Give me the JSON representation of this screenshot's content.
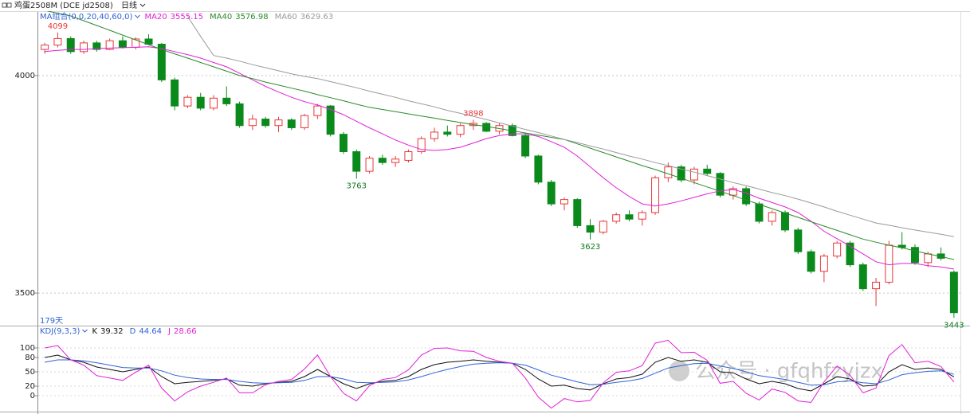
{
  "chart_data": {
    "type": "candlestick",
    "symbol": "鸡蛋2508M (DCE jd2508)",
    "period": "日线",
    "indicator": "MA组合(0,0,20,40,60,0)",
    "day_count": "179天",
    "watermark": "公众号 · gfqhfzyjzx",
    "up_color": "#e8373a",
    "down_color": "#0b8a1c",
    "ylim": [
      3427,
      4148
    ],
    "yticks": [
      3500,
      4000
    ],
    "grid": true,
    "ohlc": [
      [
        4060,
        4075,
        4050,
        4070
      ],
      [
        4070,
        4099,
        4065,
        4085
      ],
      [
        4085,
        4090,
        4050,
        4055
      ],
      [
        4055,
        4080,
        4050,
        4075
      ],
      [
        4075,
        4080,
        4055,
        4060
      ],
      [
        4060,
        4085,
        4058,
        4080
      ],
      [
        4080,
        4090,
        4062,
        4065
      ],
      [
        4065,
        4088,
        4060,
        4084
      ],
      [
        4084,
        4095,
        4070,
        4072
      ],
      [
        4072,
        4075,
        3985,
        3990
      ],
      [
        3990,
        3995,
        3920,
        3930
      ],
      [
        3930,
        3955,
        3925,
        3950
      ],
      [
        3950,
        3960,
        3920,
        3925
      ],
      [
        3925,
        3955,
        3920,
        3948
      ],
      [
        3948,
        3975,
        3930,
        3935
      ],
      [
        3935,
        3940,
        3880,
        3885
      ],
      [
        3885,
        3910,
        3875,
        3900
      ],
      [
        3900,
        3905,
        3880,
        3885
      ],
      [
        3885,
        3905,
        3870,
        3898
      ],
      [
        3898,
        3902,
        3875,
        3880
      ],
      [
        3880,
        3912,
        3875,
        3908
      ],
      [
        3908,
        3935,
        3900,
        3930
      ],
      [
        3930,
        3932,
        3860,
        3865
      ],
      [
        3865,
        3870,
        3820,
        3825
      ],
      [
        3825,
        3830,
        3763,
        3780
      ],
      [
        3780,
        3815,
        3775,
        3810
      ],
      [
        3810,
        3818,
        3795,
        3800
      ],
      [
        3800,
        3815,
        3790,
        3808
      ],
      [
        3805,
        3830,
        3800,
        3825
      ],
      [
        3825,
        3860,
        3820,
        3855
      ],
      [
        3855,
        3880,
        3848,
        3870
      ],
      [
        3870,
        3885,
        3860,
        3865
      ],
      [
        3865,
        3890,
        3858,
        3885
      ],
      [
        3885,
        3898,
        3875,
        3890
      ],
      [
        3890,
        3893,
        3870,
        3872
      ],
      [
        3872,
        3890,
        3865,
        3885
      ],
      [
        3885,
        3890,
        3860,
        3862
      ],
      [
        3862,
        3868,
        3810,
        3815
      ],
      [
        3815,
        3818,
        3750,
        3755
      ],
      [
        3755,
        3760,
        3700,
        3705
      ],
      [
        3705,
        3720,
        3690,
        3715
      ],
      [
        3715,
        3718,
        3650,
        3655
      ],
      [
        3655,
        3670,
        3623,
        3640
      ],
      [
        3640,
        3668,
        3635,
        3665
      ],
      [
        3665,
        3685,
        3660,
        3680
      ],
      [
        3680,
        3690,
        3665,
        3670
      ],
      [
        3670,
        3690,
        3655,
        3685
      ],
      [
        3685,
        3770,
        3680,
        3765
      ],
      [
        3765,
        3800,
        3755,
        3790
      ],
      [
        3790,
        3795,
        3755,
        3760
      ],
      [
        3760,
        3790,
        3750,
        3785
      ],
      [
        3785,
        3795,
        3770,
        3775
      ],
      [
        3775,
        3778,
        3720,
        3725
      ],
      [
        3725,
        3745,
        3715,
        3740
      ],
      [
        3740,
        3745,
        3700,
        3705
      ],
      [
        3705,
        3710,
        3660,
        3665
      ],
      [
        3665,
        3690,
        3655,
        3685
      ],
      [
        3685,
        3690,
        3640,
        3645
      ],
      [
        3645,
        3650,
        3590,
        3595
      ],
      [
        3595,
        3600,
        3545,
        3550
      ],
      [
        3550,
        3590,
        3525,
        3585
      ],
      [
        3585,
        3620,
        3580,
        3615
      ],
      [
        3615,
        3620,
        3560,
        3565
      ],
      [
        3565,
        3570,
        3505,
        3510
      ],
      [
        3510,
        3535,
        3470,
        3525
      ],
      [
        3525,
        3620,
        3520,
        3610
      ],
      [
        3610,
        3640,
        3600,
        3605
      ],
      [
        3605,
        3612,
        3565,
        3570
      ],
      [
        3570,
        3595,
        3560,
        3590
      ],
      [
        3590,
        3605,
        3575,
        3580
      ],
      [
        3548,
        3552,
        3443,
        3455
      ]
    ],
    "annotations": [
      {
        "value": 4099,
        "at": "high"
      },
      {
        "value": 3763,
        "at": "low"
      },
      {
        "value": 3898,
        "at": "high"
      },
      {
        "value": 3623,
        "at": "low"
      },
      {
        "value": 3443,
        "at": "low"
      }
    ],
    "series": [
      {
        "name": "MA20",
        "color": "#e020d8",
        "values": [
          4055,
          4058,
          4060,
          4060,
          4062,
          4063,
          4064,
          4065,
          4066,
          4062,
          4055,
          4048,
          4040,
          4030,
          4020,
          4005,
          3990,
          3975,
          3962,
          3950,
          3940,
          3932,
          3922,
          3910,
          3895,
          3880,
          3866,
          3852,
          3840,
          3830,
          3828,
          3830,
          3835,
          3845,
          3855,
          3862,
          3866,
          3866,
          3860,
          3848,
          3835,
          3815,
          3790,
          3765,
          3742,
          3722,
          3705,
          3700,
          3705,
          3712,
          3720,
          3728,
          3735,
          3738,
          3730,
          3718,
          3708,
          3698,
          3685,
          3665,
          3642,
          3625,
          3608,
          3590,
          3572,
          3565,
          3568,
          3568,
          3563,
          3560,
          3555.15
        ]
      },
      {
        "name": "MA40",
        "color": "#2a8a2a",
        "values": [
          4150,
          4143,
          4137,
          4126,
          4115,
          4104,
          4093,
          4082,
          4071,
          4060,
          4050,
          4040,
          4030,
          4020,
          4010,
          4000,
          3993,
          3985,
          3978,
          3971,
          3964,
          3956,
          3949,
          3942,
          3934,
          3927,
          3922,
          3917,
          3912,
          3907,
          3902,
          3897,
          3892,
          3887,
          3883,
          3878,
          3873,
          3868,
          3863,
          3858,
          3853,
          3843,
          3833,
          3823,
          3813,
          3803,
          3793,
          3784,
          3774,
          3764,
          3754,
          3744,
          3734,
          3724,
          3714,
          3704,
          3694,
          3684,
          3674,
          3664,
          3654,
          3644,
          3634,
          3624,
          3617,
          3610,
          3604,
          3597,
          3590,
          3584,
          3576.98
        ]
      },
      {
        "name": "MA60",
        "color": "#9a9a9a",
        "values": [
          null,
          null,
          null,
          null,
          null,
          null,
          null,
          null,
          null,
          null,
          null,
          4136,
          4090,
          4046,
          4040,
          4033,
          4025,
          4018,
          4011,
          4004,
          3998,
          3993,
          3986,
          3979,
          3972,
          3964,
          3957,
          3950,
          3942,
          3935,
          3928,
          3920,
          3913,
          3906,
          3899,
          3891,
          3884,
          3876,
          3869,
          3861,
          3853,
          3846,
          3838,
          3831,
          3823,
          3815,
          3808,
          3800,
          3793,
          3785,
          3778,
          3770,
          3762,
          3754,
          3747,
          3739,
          3731,
          3724,
          3716,
          3707,
          3698,
          3688,
          3679,
          3670,
          3661,
          3656,
          3650,
          3645,
          3640,
          3635,
          3629.63
        ]
      }
    ],
    "kdj": {
      "title": "KDJ(9,3,3)",
      "ylim": [
        -30,
        125
      ],
      "yticks": [
        0,
        20,
        50,
        80,
        100
      ],
      "series": [
        {
          "name": "K",
          "color": "#111111",
          "values": [
            80,
            85,
            75,
            70,
            60,
            55,
            50,
            55,
            60,
            40,
            25,
            28,
            30,
            32,
            35,
            22,
            20,
            25,
            28,
            30,
            40,
            55,
            40,
            25,
            15,
            25,
            30,
            32,
            40,
            55,
            65,
            70,
            72,
            75,
            72,
            70,
            68,
            55,
            35,
            20,
            22,
            15,
            12,
            25,
            35,
            38,
            45,
            70,
            80,
            72,
            75,
            70,
            50,
            48,
            35,
            25,
            30,
            25,
            15,
            10,
            25,
            40,
            35,
            20,
            22,
            50,
            65,
            55,
            58,
            55,
            39.32
          ]
        },
        {
          "name": "D",
          "color": "#2f62d6",
          "values": [
            70,
            75,
            75,
            73,
            69,
            64,
            59,
            58,
            58,
            52,
            43,
            38,
            35,
            34,
            34,
            30,
            27,
            26,
            27,
            28,
            32,
            40,
            40,
            35,
            28,
            27,
            28,
            29,
            33,
            40,
            48,
            55,
            61,
            66,
            68,
            69,
            68,
            64,
            54,
            43,
            36,
            29,
            23,
            24,
            28,
            31,
            36,
            47,
            58,
            63,
            67,
            68,
            62,
            57,
            50,
            42,
            38,
            34,
            28,
            22,
            23,
            29,
            31,
            27,
            25,
            33,
            44,
            48,
            51,
            52,
            44.64
          ]
        },
        {
          "name": "J",
          "color": "#e020d8",
          "values": [
            100,
            105,
            75,
            64,
            42,
            37,
            32,
            49,
            64,
            16,
            -11,
            8,
            20,
            28,
            37,
            6,
            6,
            23,
            30,
            34,
            56,
            85,
            40,
            5,
            -11,
            21,
            34,
            38,
            54,
            85,
            99,
            100,
            94,
            93,
            80,
            72,
            68,
            37,
            -3,
            -26,
            -6,
            -13,
            -10,
            27,
            49,
            52,
            63,
            110,
            116,
            90,
            91,
            74,
            26,
            30,
            5,
            -9,
            14,
            7,
            -11,
            -14,
            29,
            62,
            43,
            6,
            16,
            84,
            107,
            69,
            72,
            61,
            28.66
          ]
        }
      ]
    }
  }
}
